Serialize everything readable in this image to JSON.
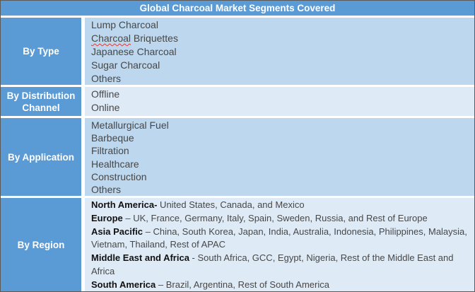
{
  "title": "Global Charcoal Market Segments Covered",
  "colors": {
    "header_blue": "#5B9BD5",
    "band_medium_blue": "#BDD7EE",
    "band_light_blue": "#DEEBF7",
    "header_text": "#FFFFFF",
    "spellcheck_underline": "#E03C31"
  },
  "sections": {
    "by_type": {
      "label": "By Type",
      "items": [
        "Lump Charcoal",
        {
          "word": "Charcoal",
          "rest": " Briquettes"
        },
        "Japanese Charcoal",
        "Sugar Charcoal",
        "Others"
      ]
    },
    "by_distribution_channel": {
      "label": "By Distribution Channel",
      "items": [
        "Offline",
        "Online"
      ]
    },
    "by_application": {
      "label": "By Application",
      "items": [
        "Metallurgical Fuel",
        "Barbeque",
        "Filtration",
        "Healthcare",
        "Construction",
        "Others"
      ]
    },
    "by_region": {
      "label": "By Region",
      "entries": [
        {
          "name": "North America-",
          "detail": " United States, Canada, and Mexico"
        },
        {
          "name": "Europe",
          "detail": " – UK, France, Germany, Italy, Spain, Sweden, Russia, and Rest of Europe"
        },
        {
          "name": "Asia Pacific",
          "detail": " – China, South Korea, Japan, India, Australia, Indonesia, Philippines, Malaysia, Vietnam, Thailand, Rest of APAC"
        },
        {
          "name": "Middle East and Africa",
          "detail": " - South Africa, GCC, Egypt, Nigeria, Rest of the Middle East and Africa"
        },
        {
          "name": "South America",
          "detail": " – Brazil, Argentina, Rest of South America"
        }
      ]
    }
  }
}
